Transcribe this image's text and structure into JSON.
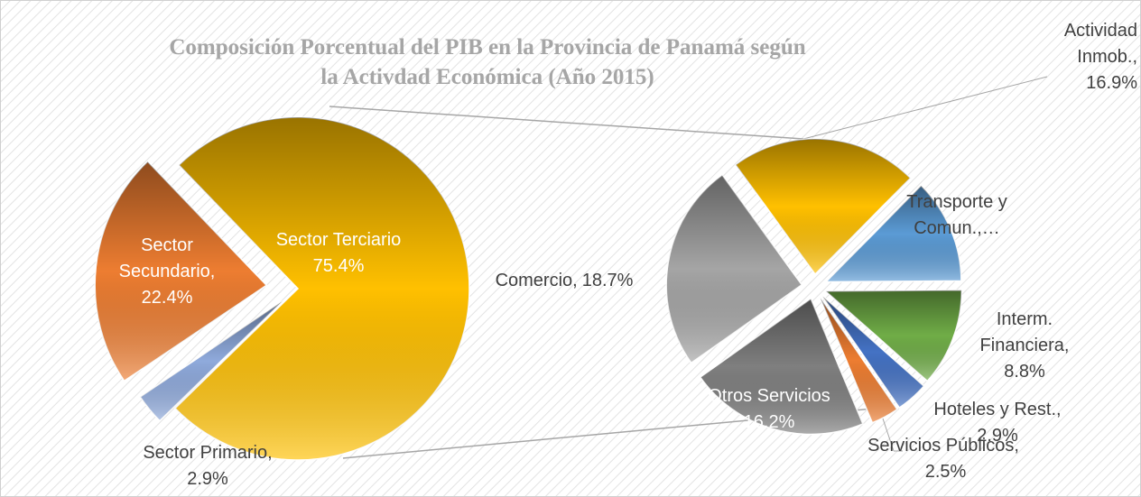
{
  "chart_data": [
    {
      "type": "pie",
      "title": "Composición Porcentual del PIB en la Provincia de Panamá según la Activdad Económica (Año 2015)",
      "categories": [
        "Sector Primario,",
        "Sector Secundario,",
        "Sector Terciario"
      ],
      "values": [
        2.9,
        22.4,
        75.4
      ],
      "value_labels": [
        "2.9%",
        "22.4%",
        "75.4%"
      ],
      "colors": [
        "#8faadc",
        "#ed7d31",
        "#ffc000"
      ]
    },
    {
      "type": "pie",
      "categories": [
        "Actividad Inmob.,",
        "Transporte y Comun.,…",
        "Interm. Financiera,",
        "Hoteles y Rest.,",
        "Servicios Públicos,",
        "Otros Servicios",
        "Comercio,"
      ],
      "values": [
        16.9,
        9.4,
        8.8,
        2.9,
        2.5,
        16.2,
        18.7
      ],
      "value_labels": [
        "16.9%",
        null,
        "8.8%",
        "2.9%",
        "2.5%",
        "16.2%",
        "18.7%"
      ],
      "colors": [
        "#ffc000",
        "#5b9bd5",
        "#70ad47",
        "#4472c4",
        "#ed7d31",
        "#7f7f7f",
        "#a5a5a5"
      ]
    }
  ]
}
